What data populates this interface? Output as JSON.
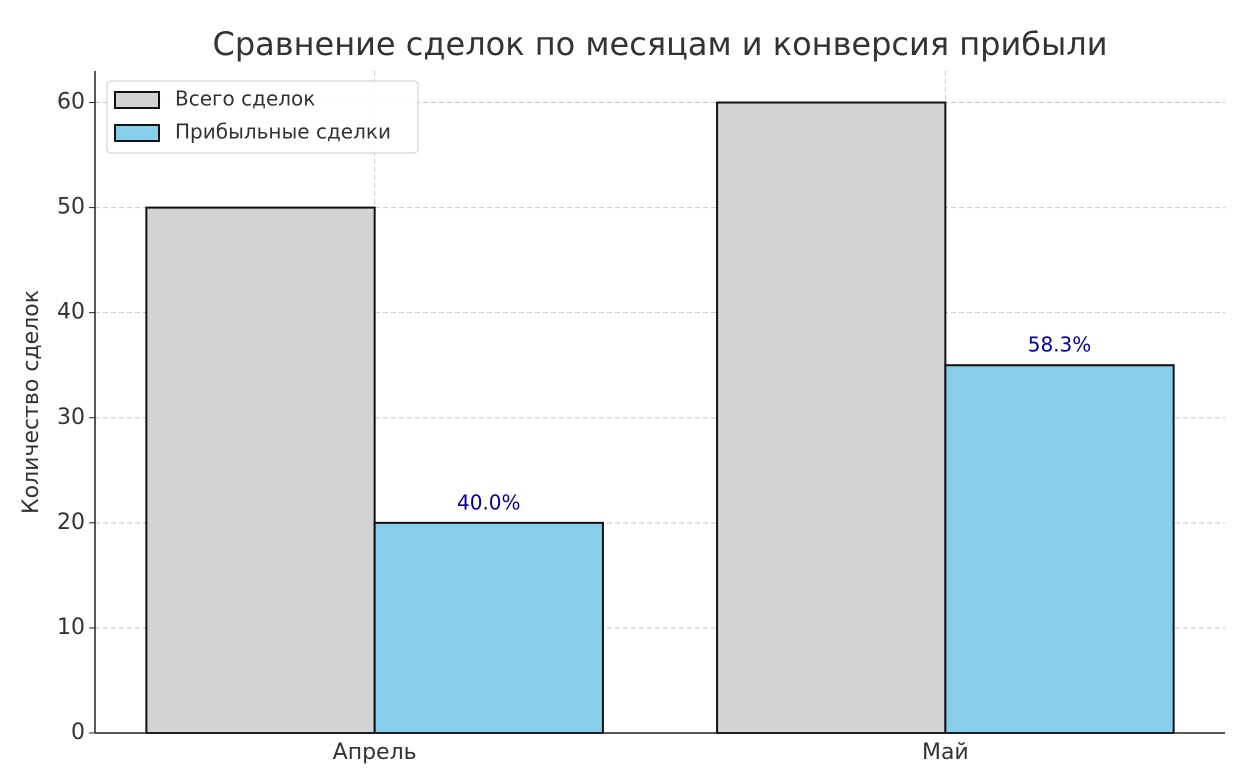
{
  "chart_data": {
    "type": "bar",
    "title": "Сравнение сделок по месяцам и конверсия прибыли",
    "y_label": "Количество сделок",
    "categories": [
      "Апрель",
      "Май"
    ],
    "series": [
      {
        "name": "Всего сделок",
        "color": "#d3d3d3",
        "values": [
          50,
          60
        ]
      },
      {
        "name": "Прибыльные сделки",
        "color": "#87ceeb",
        "values": [
          20,
          35
        ]
      }
    ],
    "annotations": [
      "40.0%",
      "58.3%"
    ],
    "annotation_color": "#0000b0",
    "ylim": [
      0,
      63
    ],
    "yticks": [
      0,
      10,
      20,
      30,
      40,
      50,
      60
    ],
    "grid": true,
    "legend": "upper left"
  }
}
